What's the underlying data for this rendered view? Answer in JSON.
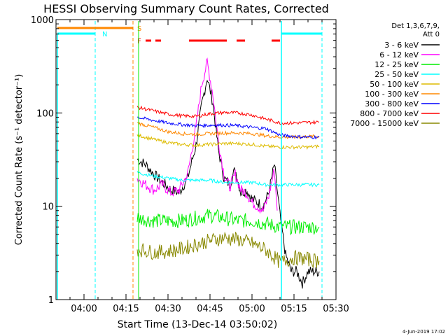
{
  "chart_data": {
    "type": "line",
    "title": "HESSI Observing Summary Count Rates, Corrected",
    "xlabel": "Start Time (13-Dec-14 03:50:02)",
    "ylabel": "Corrected Count Rate (s⁻¹ detector⁻¹)",
    "y_scale": "log",
    "ylim": [
      1,
      1000
    ],
    "xlim": [
      "03:50",
      "05:30"
    ],
    "x_ticks": [
      "04:00",
      "04:15",
      "04:30",
      "04:45",
      "05:00",
      "05:15",
      "05:30"
    ],
    "y_ticks": [
      "1",
      "10",
      "100",
      "1000"
    ],
    "legend_header": [
      "Det 1,3,6,7,9,",
      "Att 0"
    ],
    "legend_position": "right",
    "timestamp": "4-Jun-2019 17:02",
    "series": [
      {
        "name": "3 - 6 keV",
        "color": "#000000",
        "x": [
          "04:19",
          "04:22",
          "04:25",
          "04:28",
          "04:31",
          "04:34",
          "04:37",
          "04:40",
          "04:42",
          "04:44",
          "04:46",
          "04:48",
          "04:50",
          "04:52",
          "04:54",
          "04:56",
          "04:58",
          "05:00",
          "05:02",
          "05:04",
          "05:06",
          "05:08",
          "05:10",
          "05:12",
          "05:14",
          "05:16",
          "05:18",
          "05:20",
          "05:22",
          "05:24"
        ],
        "y": [
          32,
          28,
          22,
          18,
          15,
          14,
          20,
          45,
          120,
          240,
          130,
          40,
          20,
          17,
          25,
          14,
          15,
          12,
          11,
          10,
          14,
          28,
          8,
          3,
          2,
          2,
          1.5,
          2,
          2,
          2
        ]
      },
      {
        "name": "6 - 12 keV",
        "color": "#ff00ff",
        "x": [
          "04:19",
          "04:22",
          "04:25",
          "04:28",
          "04:31",
          "04:34",
          "04:37",
          "04:40",
          "04:42",
          "04:44",
          "04:46",
          "04:48",
          "04:50",
          "04:52",
          "04:54",
          "04:56",
          "04:58",
          "05:00",
          "05:02",
          "05:04",
          "05:06",
          "05:08",
          "05:09"
        ],
        "y": [
          20,
          17,
          15,
          17,
          14,
          15,
          22,
          70,
          200,
          350,
          160,
          50,
          22,
          16,
          22,
          15,
          14,
          11,
          10,
          9,
          13,
          25,
          9
        ]
      },
      {
        "name": "12 - 25 keV",
        "color": "#00ee00",
        "x": [
          "04:19",
          "04:25",
          "04:30",
          "04:35",
          "04:40",
          "04:45",
          "04:50",
          "04:55",
          "05:00",
          "05:05",
          "05:10",
          "05:15",
          "05:20",
          "05:24"
        ],
        "y": [
          7.5,
          7,
          7,
          7,
          7.5,
          8,
          7.5,
          7,
          7,
          6.5,
          6,
          6,
          6,
          6
        ]
      },
      {
        "name": "25 - 50 keV",
        "color": "#00ffff",
        "x": [
          "04:19",
          "04:25",
          "04:30",
          "04:35",
          "04:40",
          "04:45",
          "04:50",
          "04:55",
          "05:00",
          "05:05",
          "05:10",
          "05:15",
          "05:20",
          "05:24"
        ],
        "y": [
          23,
          21,
          20,
          19,
          19,
          19,
          18,
          18,
          18,
          17,
          17,
          17,
          17,
          17
        ]
      },
      {
        "name": "50 - 100 keV",
        "color": "#ddbb00",
        "x": [
          "04:19",
          "04:25",
          "04:30",
          "04:35",
          "04:40",
          "04:45",
          "04:50",
          "04:55",
          "05:00",
          "05:05",
          "05:10",
          "05:15",
          "05:20",
          "05:24"
        ],
        "y": [
          58,
          52,
          48,
          46,
          45,
          46,
          47,
          47,
          46,
          44,
          43,
          43,
          43,
          44
        ]
      },
      {
        "name": "100 - 300 keV",
        "color": "#ff8800",
        "x": [
          "04:19",
          "04:25",
          "04:30",
          "04:35",
          "04:40",
          "04:45",
          "04:50",
          "04:55",
          "05:00",
          "05:05",
          "05:10",
          "05:15",
          "05:20",
          "05:24"
        ],
        "y": [
          78,
          70,
          63,
          60,
          59,
          60,
          61,
          61,
          60,
          57,
          55,
          55,
          56,
          56
        ]
      },
      {
        "name": "300 - 800 keV",
        "color": "#0000ff",
        "x": [
          "04:19",
          "04:25",
          "04:30",
          "04:35",
          "04:40",
          "04:45",
          "04:50",
          "04:55",
          "05:00",
          "05:05",
          "05:10",
          "05:15",
          "05:20",
          "05:24"
        ],
        "y": [
          90,
          83,
          78,
          75,
          73,
          74,
          74,
          73,
          70,
          68,
          58,
          56,
          55,
          55
        ]
      },
      {
        "name": "800 - 7000 keV",
        "color": "#ff0000",
        "x": [
          "04:19",
          "04:25",
          "04:30",
          "04:35",
          "04:40",
          "04:45",
          "04:50",
          "04:55",
          "05:00",
          "05:05",
          "05:10",
          "05:15",
          "05:20",
          "05:24"
        ],
        "y": [
          115,
          105,
          97,
          93,
          92,
          98,
          101,
          100,
          95,
          86,
          78,
          78,
          79,
          80
        ]
      },
      {
        "name": "7000 - 15000 keV",
        "color": "#888800",
        "x": [
          "04:19",
          "04:25",
          "04:30",
          "04:35",
          "04:40",
          "04:45",
          "04:50",
          "04:55",
          "05:00",
          "05:05",
          "05:10",
          "05:15",
          "05:20",
          "05:24"
        ],
        "y": [
          3.5,
          3.2,
          3.3,
          3.5,
          3.9,
          4.3,
          4.6,
          4.4,
          4.0,
          3.4,
          2.5,
          2.8,
          2.7,
          2.6
        ]
      }
    ],
    "annotations": {
      "N": {
        "label": "N",
        "color": "#00ffff"
      },
      "S": {
        "label": "S",
        "color": "#ff8800"
      },
      "F": {
        "label": "F",
        "color": "#ff0000"
      }
    }
  }
}
